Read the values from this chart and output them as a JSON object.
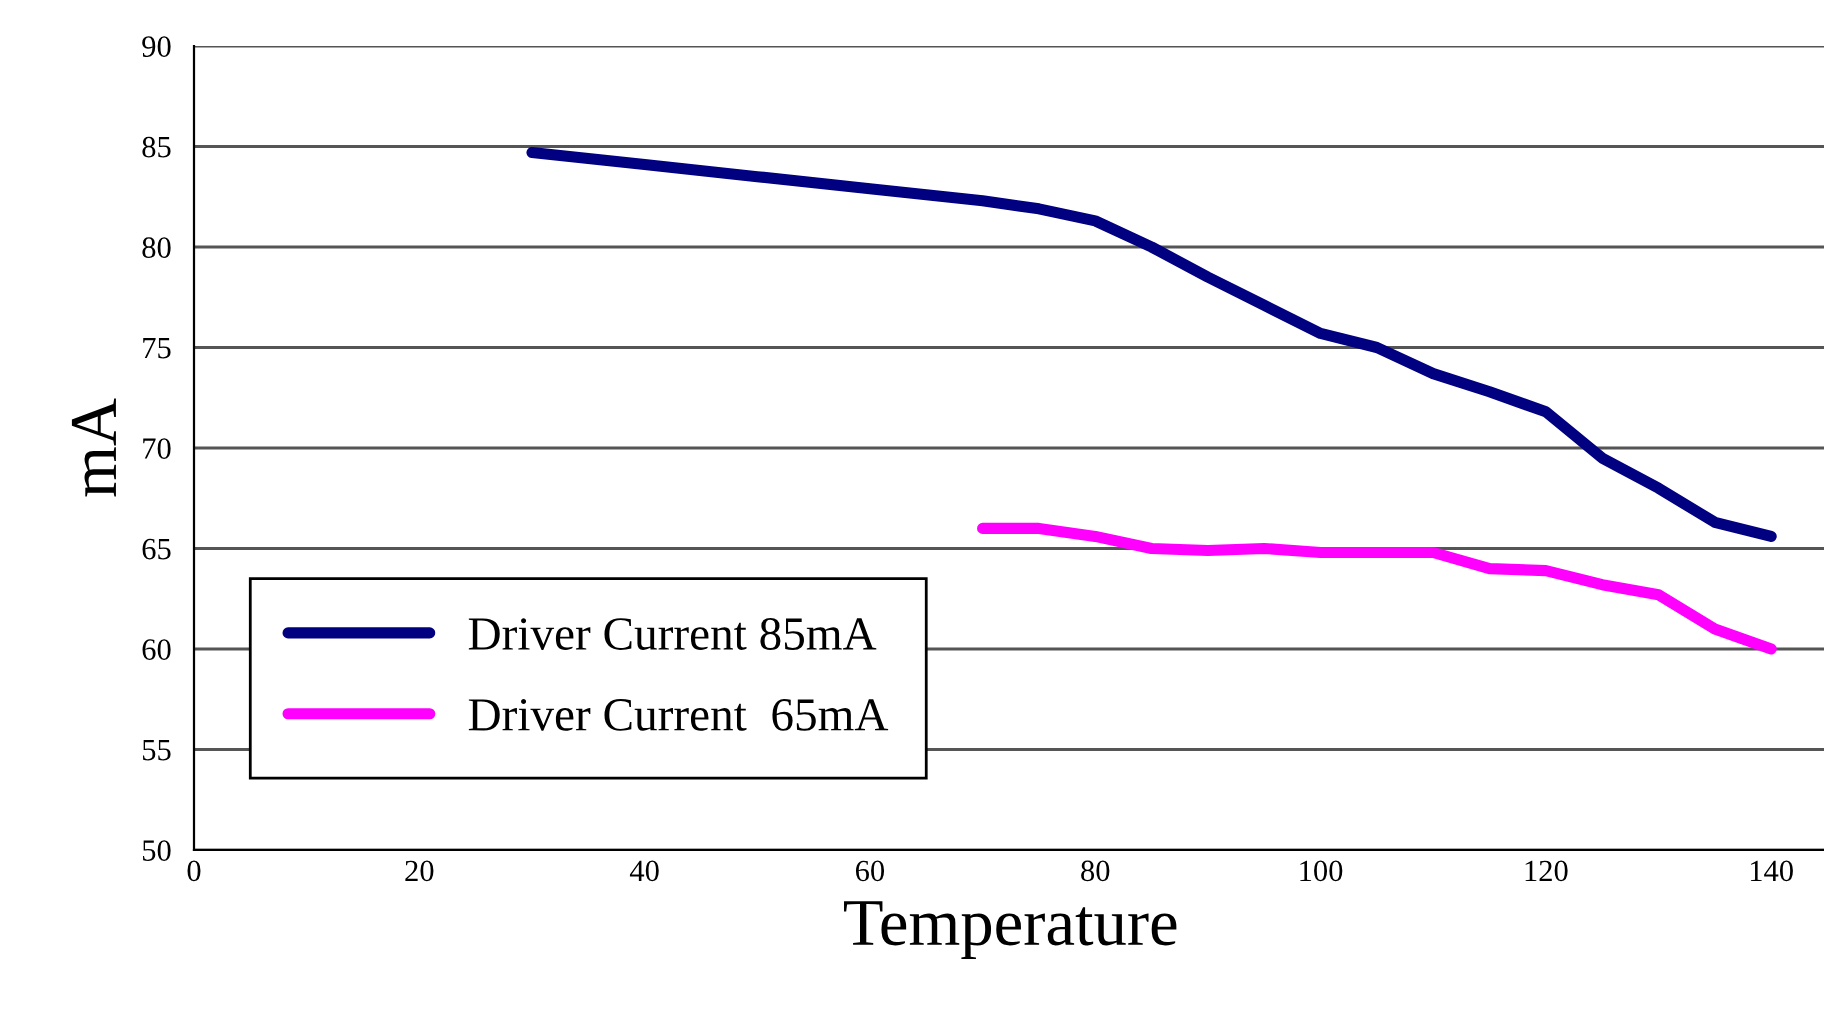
{
  "chart_data": {
    "type": "line",
    "xlabel": "Temperature",
    "ylabel": "mA",
    "xlim": [
      0,
      145
    ],
    "xticks": [
      0,
      20,
      40,
      60,
      80,
      100,
      120,
      140
    ],
    "ylim": [
      50,
      90
    ],
    "yticks": [
      50,
      55,
      60,
      65,
      70,
      75,
      80,
      85,
      90
    ],
    "grid": "y",
    "legend": "bottom left",
    "marker": "none",
    "line_style": "solid",
    "series": [
      {
        "name": "Driver Current 85mA",
        "color": "#000080",
        "x": [
          30,
          40,
          50,
          60,
          70,
          75,
          80,
          85,
          90,
          95,
          100,
          105,
          110,
          115,
          120,
          125,
          130,
          135,
          140
        ],
        "values": [
          84.7,
          84.1,
          83.5,
          82.9,
          82.3,
          81.9,
          81.3,
          80.0,
          78.5,
          77.1,
          75.7,
          75.0,
          73.7,
          72.8,
          71.8,
          69.5,
          68.0,
          66.3,
          65.6
        ]
      },
      {
        "name": "Driver Current  65mA",
        "color": "#ff00ff",
        "x": [
          70,
          75,
          80,
          85,
          90,
          95,
          100,
          105,
          110,
          115,
          120,
          125,
          130,
          135,
          140
        ],
        "values": [
          66.0,
          66.0,
          65.6,
          65.0,
          64.9,
          65.0,
          64.8,
          64.8,
          64.8,
          64.0,
          63.9,
          63.2,
          62.7,
          61.0,
          60.0
        ]
      }
    ]
  }
}
